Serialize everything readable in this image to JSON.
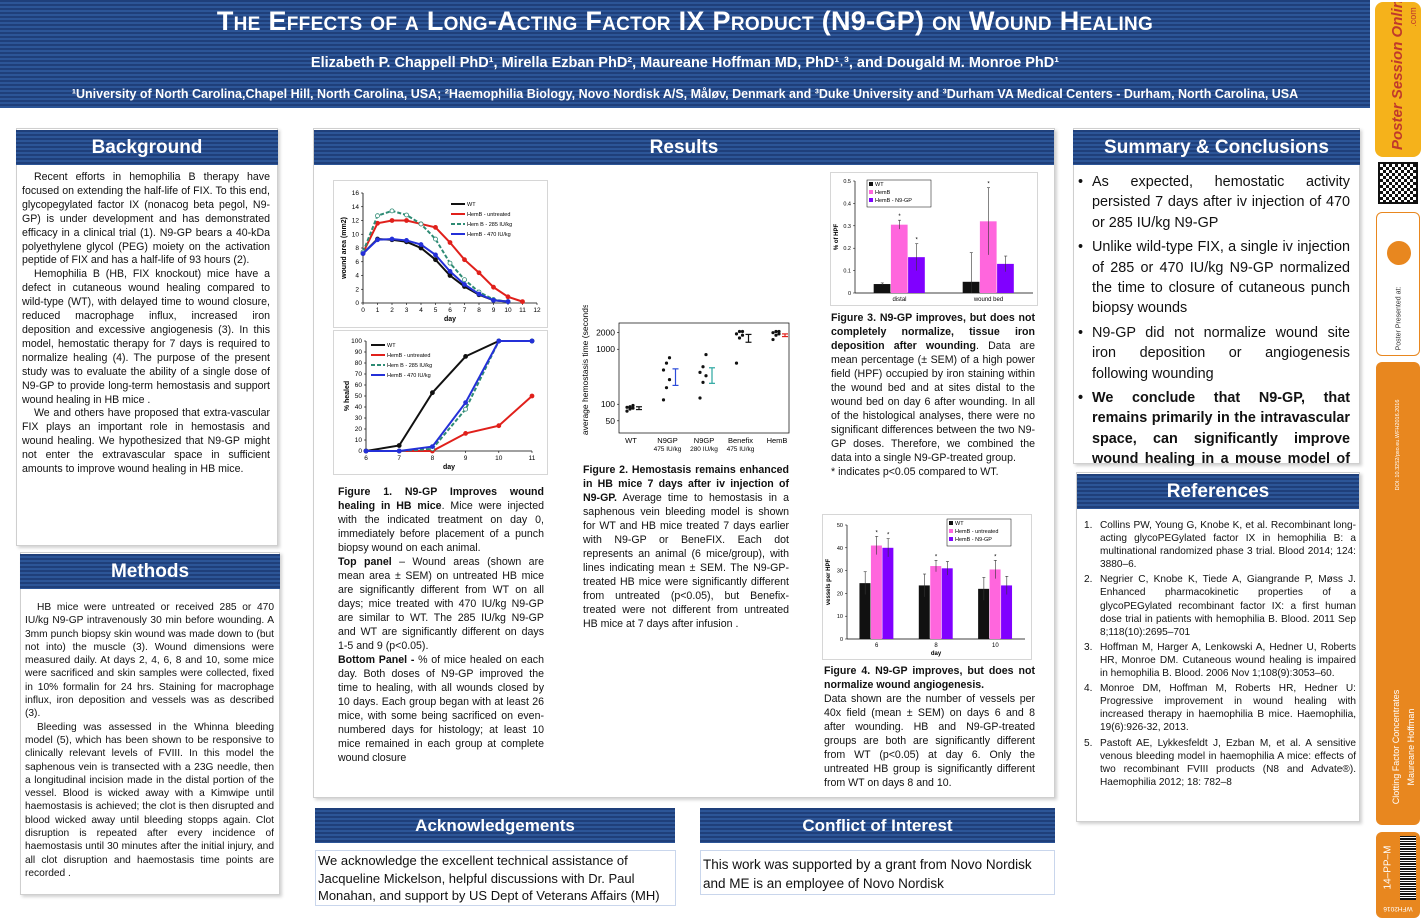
{
  "header": {
    "title": "The Effects of a Long-Acting Factor IX Product (N9-GP) on Wound Healing",
    "authors": "Elizabeth P. Chappell PhD¹, Mirella Ezban PhD², Maureane Hoffman MD, PhD¹˒³, and Dougald M. Monroe PhD¹",
    "affiliations": "¹University of North Carolina,Chapel Hill, North Carolina, USA;  ²Haemophilia Biology, Novo Nordisk A/S, Måløv, Denmark and ³Duke University and  ³Durham VA Medical Centers - Durham, North Carolina, USA"
  },
  "background": {
    "heading": "Background",
    "paragraphs": [
      "Recent efforts in hemophilia B therapy have focused on extending the half-life of FIX. To this end,  glycopegylated factor IX (nonacog beta pegol, N9-GP) is under development and has demonstrated efficacy in a clinical trial (1). N9-GP bears a 40-kDa polyethylene glycol (PEG) moiety on the activation peptide of FIX and has a half-life of 93 hours (2).",
      "Hemophilia B (HB, FIX knockout) mice have a defect in cutaneous wound healing compared to wild-type (WT), with delayed time to wound closure, reduced macrophage influx, increased iron deposition and excessive angiogenesis (3). In this model, hemostatic therapy for 7 days is required to normalize healing (4). The purpose of the present study was to evaluate the ability of a single dose of N9-GP   to provide long-term hemostasis and support wound healing in HB mice .",
      "We and others have proposed that extra-vascular FIX plays an important role in hemostasis and wound healing. We hypothesized that N9-GP might not enter the extravascular space in sufficient amounts to improve wound healing in HB mice."
    ]
  },
  "methods": {
    "heading": "Methods",
    "paragraphs": [
      "HB mice were untreated or received 285 or 470 IU/kg N9-GP intravenously 30 min before wounding. A 3mm punch biopsy skin wound was made down to (but not into) the muscle (3). Wound dimensions were measured daily. At days 2, 4, 6, 8 and 10, some mice were sacrificed and skin samples were collected, fixed in 10% formalin for 24 hrs. Staining for macrophage influx, iron deposition and vessels was as described (3).",
      "Bleeding was assessed in the Whinna bleeding model (5), which has been shown to be responsive to clinically relevant levels of FVIII. In this model the saphenous vein is transected with a 23G needle, then a longitudinal incision made in the distal portion of the vessel. Blood is wicked away with a Kimwipe until haemostasis is achieved; the clot is then disrupted and blood wicked away until bleeding stopps again. Clot disruption is repeated after every incidence of haemostasis until 30 minutes after the initial injury, and all clot disruption and haemostasis time points are recorded ."
    ]
  },
  "results": {
    "heading": "Results"
  },
  "fig1": {
    "caption_title": "Figure 1. N9-GP Improves wound healing in HB mice",
    "caption_intro": ". Mice were injected with the indicated treatment on day 0, immediately before placement of a punch biopsy wound on each animal.",
    "top_label": "Top panel",
    "top_text": " – Wound areas (shown are mean area ± SEM) on untreated HB mice are significantly different from WT on all days; mice treated with 470 IU/kg N9-GP are similar to WT. The 285 IU/kg N9-GP and WT are significantly different on days 1-5 and 9 (p<0.05).",
    "bottom_label": "Bottom Panel -",
    "bottom_text": " % of mice healed on each day. Both doses of N9-GP improved the time to healing, with all wounds closed by 10 days. Each group began with at least 26 mice, with some being sacrificed on even-numbered days for histology; at least 10 mice remained in each group at complete wound closure"
  },
  "fig2": {
    "caption_title": "Figure 2. Hemostasis remains enhanced in HB mice 7 days after iv injection of N9-GP.",
    "caption_text": "  Average time to hemostasis in a saphenous vein bleeding model is shown for WT and HB mice treated 7 days earlier with N9-GP or BeneFIX. Each dot represents an animal (6 mice/group), with lines indicating mean ± SEM. The N9-GP-treated HB mice were significantly different from untreated (p<0.05), but Benefix-treated were not different from untreated HB mice at 7 days after infusion ."
  },
  "fig3": {
    "caption_title": "Figure 3. N9-GP improves, but does not completely normalize, tissue iron deposition after wounding",
    "caption_text": ". Data are mean percentage (± SEM) of a high power field (HPF) occupied by iron staining within the wound bed and at sites distal to the wound bed on day 6 after wounding. In all of the histological analyses, there were no significant differences between the two N9-GP doses. Therefore, we combined the data into a single N9-GP-treated group.",
    "footnote": "* indicates p<0.05 compared to WT."
  },
  "fig4": {
    "caption_title": "Figure 4. N9-GP improves, but does not normalize wound angiogenesis.",
    "caption_text": "Data shown are the number of vessels per 40x field (mean ± SEM) on days 6 and 8 after wounding. HB and N9-GP-treated groups are both are significantly different from WT (p<0.05) at day 6. Only the untreated HB group is significantly different from WT on days 8 and 10."
  },
  "summary": {
    "heading": "Summary & Conclusions",
    "items": [
      "As expected, hemostatic activity persisted 7 days after iv injection of 470 or 285 IU/kg N9-GP",
      "Unlike wild-type FIX, a single iv injection of 285 or 470 IU/kg N9-GP normalized the time to closure of cutaneous punch biopsy wounds",
      "N9-GP did not normalize wound site iron deposition or angiogenesis following wounding",
      "We conclude that N9-GP, that remains primarily in the intravascular space, can significantly improve wound healing in a mouse model of HB"
    ]
  },
  "references": {
    "heading": "References",
    "items": [
      "Collins PW, Young G, Knobe K, et al. Recombinant long-acting glycoPEGylated factor IX in hemophilia B: a multinational randomized phase 3 trial. Blood 2014; 124: 3880–6.",
      "Negrier C, Knobe K, Tiede A, Giangrande P, Møss J. Enhanced pharmacokinetic properties of a glycoPEGylated recombinant factor IX: a first human dose trial in patients with hemophilia B. Blood. 2011 Sep 8;118(10):2695–701",
      "Hoffman M, Harger A, Lenkowski A, Hedner U, Roberts HR, Monroe DM. Cutaneous wound healing is impaired in hemophilia B. Blood. 2006 Nov 1;108(9):3053–60.",
      "Monroe DM, Hoffman M, Roberts HR, Hedner U: Progressive improvement in wound healing with increased therapy in haemophilia B mice. Haemophilia, 19(6):926-32, 2013.",
      "Pastoft AE, Lykkesfeldt J, Ezban M, et al. A sensitive venous bleeding model in haemophilia A mice: effects of two recombinant FVIII products (N8 and Advate®). Haemophilia 2012; 18: 782–8"
    ]
  },
  "acknowledgements": {
    "heading": "Acknowledgements",
    "text": "We acknowledge the excellent technical assistance of Jacqueline Mickelson, helpful discussions with Dr. Paul Monahan, and support by US Dept of Veterans Affairs (MH)"
  },
  "conflict": {
    "heading": "Conflict of Interest",
    "text": "This work was supported by a grant from Novo Nordisk and ME is an employee of Novo Nordisk"
  },
  "sidebar": {
    "logo_top": ".com",
    "logo_main": "Poster Session Online",
    "presented_at": "Poster Presented at:",
    "doi": "DOI: 10.3252/pso.eu.WFH2016.2016",
    "category": "Clotting Factor Concentrates",
    "author": "Maureane Hoffman",
    "poster_id": "14–PP–M",
    "footer": "WFH2016"
  },
  "colors": {
    "header_blue": "#1f3f7a",
    "stripe_light": "#2c5597",
    "sidebar_orange": "#e8871f",
    "sidebar_yellow": "#f5b21b"
  },
  "chart_data": [
    {
      "type": "line",
      "title": "",
      "xlabel": "day",
      "ylabel": "wound area (mm2)",
      "xlim": [
        0,
        12
      ],
      "ylim": [
        0,
        16
      ],
      "x_ticks": [
        0,
        1,
        2,
        3,
        4,
        5,
        6,
        7,
        8,
        9,
        10,
        11,
        12
      ],
      "y_ticks": [
        0,
        2,
        4,
        6,
        8,
        10,
        12,
        14,
        16
      ],
      "series": [
        {
          "name": "WT",
          "color": "#111111",
          "x": [
            0,
            1,
            2,
            3,
            4,
            5,
            6,
            7,
            8,
            9,
            10
          ],
          "y": [
            7.2,
            9.3,
            9.2,
            8.9,
            8.0,
            6.3,
            4.0,
            2.4,
            1.2,
            0.4,
            0.2
          ]
        },
        {
          "name": "HemB - untreated",
          "color": "#e0201b",
          "x": [
            0,
            1,
            2,
            3,
            4,
            5,
            6,
            7,
            8,
            9,
            10,
            11
          ],
          "y": [
            7.3,
            11.6,
            12.0,
            12.0,
            11.5,
            11.0,
            8.8,
            6.3,
            4.4,
            2.3,
            0.9,
            0.2
          ]
        },
        {
          "name": "Hem B - 285 IU/kg",
          "color": "#2e8b74",
          "x": [
            0,
            1,
            2,
            3,
            4,
            5,
            6,
            7,
            8,
            9,
            10
          ],
          "y": [
            7.4,
            12.7,
            13.4,
            12.8,
            11.5,
            9.3,
            5.8,
            3.4,
            1.6,
            0.5,
            0.2
          ]
        },
        {
          "name": "HemB - 470 IU/kg",
          "color": "#2430d8",
          "x": [
            0,
            1,
            2,
            3,
            4,
            5,
            6,
            7,
            8,
            9,
            10
          ],
          "y": [
            7.2,
            9.2,
            9.3,
            9.1,
            8.5,
            7.0,
            4.6,
            2.7,
            1.3,
            0.4,
            0.2
          ]
        }
      ]
    },
    {
      "type": "line",
      "title": "",
      "xlabel": "day",
      "ylabel": "% healed",
      "xlim": [
        6,
        11
      ],
      "ylim": [
        0,
        100
      ],
      "x_ticks": [
        6,
        7,
        8,
        9,
        10,
        11
      ],
      "y_ticks": [
        0,
        10,
        20,
        30,
        40,
        50,
        60,
        70,
        80,
        90,
        100
      ],
      "series": [
        {
          "name": "WT",
          "color": "#111111",
          "x": [
            6,
            7,
            8,
            9,
            10,
            11
          ],
          "y": [
            0,
            5,
            53,
            86,
            100,
            100
          ]
        },
        {
          "name": "HemB - untreated",
          "color": "#e0201b",
          "x": [
            6,
            7,
            8,
            9,
            10,
            11
          ],
          "y": [
            0,
            0,
            0,
            16,
            23,
            50
          ]
        },
        {
          "name": "Hem B - 285 IU/kg",
          "color": "#2e8b74",
          "x": [
            6,
            7,
            8,
            9,
            10,
            11
          ],
          "y": [
            0,
            0,
            2,
            38,
            100,
            100
          ]
        },
        {
          "name": "HemB - 470 IU/kg",
          "color": "#2430d8",
          "x": [
            6,
            7,
            8,
            9,
            10,
            11
          ],
          "y": [
            0,
            0,
            4,
            44,
            100,
            100
          ]
        }
      ]
    },
    {
      "type": "scatter",
      "title": "",
      "ylabel": "average hemostasis time (seconds)",
      "yscale": "log",
      "ylim": [
        30,
        3000
      ],
      "y_ticks": [
        50,
        100,
        1000,
        2000
      ],
      "categories": [
        "WT",
        "N9GP\n475 IU/kg",
        "N9GP\n280 IU/kg",
        "Benefix\n475 IU/kg",
        "HemB"
      ],
      "points": [
        [
          75,
          82,
          85,
          88,
          90,
          95
        ],
        [
          120,
          200,
          280,
          420,
          560,
          700
        ],
        [
          130,
          250,
          330,
          380,
          480,
          800
        ],
        [
          560,
          1600,
          1800,
          1900,
          2100,
          2100
        ],
        [
          1500,
          1800,
          1900,
          2000,
          2100,
          2100
        ]
      ],
      "means": [
        85,
        330,
        350,
        1600,
        1800
      ],
      "errors": [
        5,
        110,
        110,
        260,
        100
      ],
      "mean_colors": [
        "#111111",
        "#2b4bd9",
        "#2aa6a0",
        "#111111",
        "#e0201b"
      ]
    },
    {
      "type": "bar",
      "title": "",
      "ylabel": "% of HPF",
      "ylim": [
        0,
        0.5
      ],
      "y_ticks": [
        0,
        0.1,
        0.2,
        0.3,
        0.4,
        0.5
      ],
      "categories": [
        "distal",
        "wound bed"
      ],
      "series": [
        {
          "name": "WT",
          "color": "#111111",
          "values": [
            0.04,
            0.05
          ],
          "errors": [
            0.005,
            0.13
          ]
        },
        {
          "name": "HemB",
          "color": "#ff66dd",
          "values": [
            0.305,
            0.32
          ],
          "errors": [
            0.02,
            0.15
          ]
        },
        {
          "name": "HemB - N9-GP",
          "color": "#8000ff",
          "values": [
            0.16,
            0.13
          ],
          "errors": [
            0.06,
            0.035
          ]
        }
      ],
      "significance": [
        "*",
        "*",
        "*"
      ]
    },
    {
      "type": "bar",
      "title": "",
      "xlabel": "day",
      "ylabel": "vessels per HPF",
      "ylim": [
        0,
        50
      ],
      "y_ticks": [
        0,
        10,
        20,
        30,
        40,
        50
      ],
      "categories": [
        "6",
        "8",
        "10"
      ],
      "series": [
        {
          "name": "WT",
          "color": "#111111",
          "values": [
            24.5,
            23.5,
            22
          ],
          "errors": [
            5,
            5,
            5
          ]
        },
        {
          "name": "HemB - untreated",
          "color": "#ff66dd",
          "values": [
            41,
            32,
            30.5
          ],
          "errors": [
            4,
            2.5,
            4
          ]
        },
        {
          "name": "HemB - N9-GP",
          "color": "#8000ff",
          "values": [
            40,
            31,
            23.5
          ],
          "errors": [
            4,
            3,
            4
          ]
        }
      ],
      "significance": [
        "*",
        "*",
        "*",
        "*"
      ]
    }
  ]
}
